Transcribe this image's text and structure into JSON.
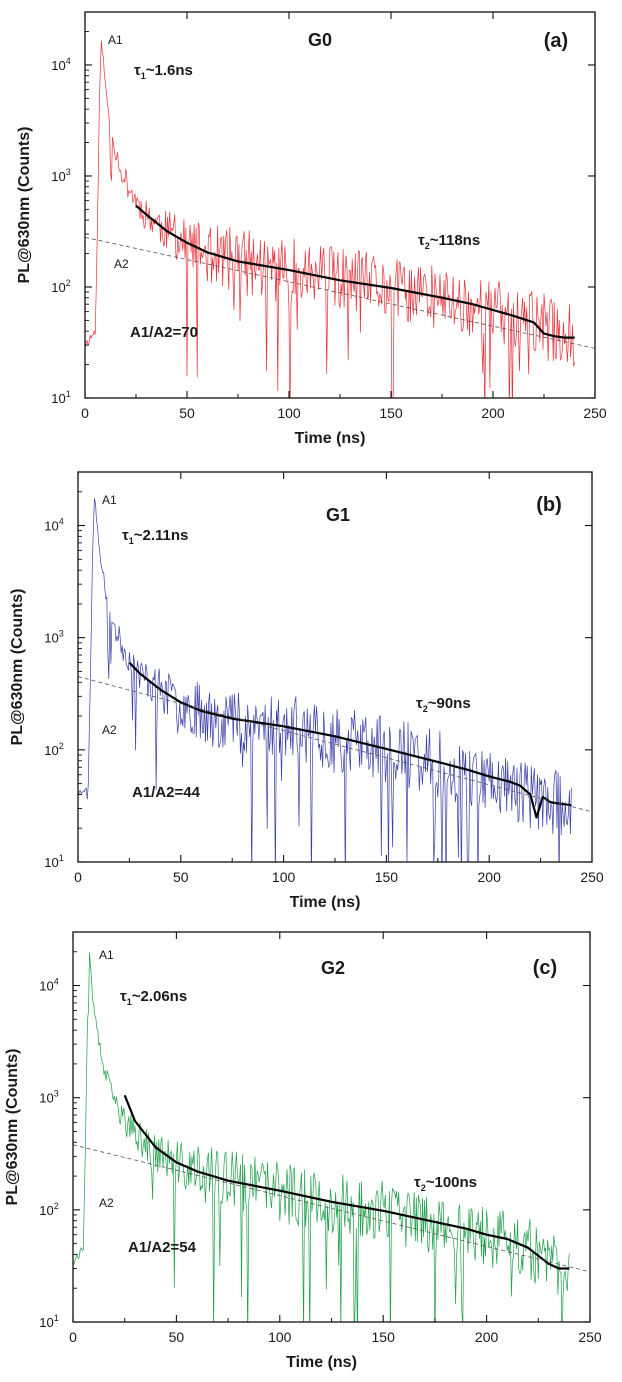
{
  "chart_data": [
    {
      "type": "line",
      "panel_label": "(a)",
      "title": "G0",
      "xlabel": "Time (ns)",
      "ylabel": "PL@630nm (Counts)",
      "xlim": [
        0,
        250
      ],
      "ylim": [
        10,
        30000
      ],
      "yscale": "log",
      "x_ticks": [
        0,
        50,
        100,
        150,
        200,
        250
      ],
      "y_ticks": [
        {
          "value": 10,
          "base": "10",
          "exp": "1"
        },
        {
          "value": 100,
          "base": "10",
          "exp": "2"
        },
        {
          "value": 1000,
          "base": "10",
          "exp": "3"
        },
        {
          "value": 10000,
          "base": "10",
          "exp": "4"
        }
      ],
      "series": [
        {
          "values_x": [
            0,
            5,
            6,
            7,
            8,
            9,
            10,
            12,
            15,
            18,
            22,
            26,
            30,
            40,
            50,
            60,
            75,
            100,
            125,
            150,
            175,
            200,
            220,
            230,
            240
          ],
          "values_y": [
            30,
            40,
            300,
            4000,
            18000,
            11000,
            6500,
            3200,
            1700,
            1100,
            750,
            560,
            450,
            320,
            240,
            200,
            170,
            140,
            115,
            95,
            78,
            60,
            48,
            40,
            35
          ],
          "color": "#e8323a",
          "noise": 0.3,
          "seed": 11
        },
        {
          "values_x": [
            25,
            30,
            40,
            50,
            60,
            75,
            100,
            125,
            150,
            175,
            190,
            200,
            210,
            220,
            225,
            230,
            235,
            240
          ],
          "values_y": [
            540,
            450,
            320,
            250,
            205,
            170,
            142,
            115,
            98,
            80,
            70,
            62,
            55,
            48,
            38,
            36,
            35,
            35
          ],
          "color": "#000000",
          "noise": 0,
          "seed": 0
        },
        {
          "values_x": [
            0,
            250
          ],
          "values_y": [
            280,
            28
          ],
          "color": "#555555",
          "noise": 0,
          "seed": 0
        }
      ],
      "annotations": {
        "a1": "A1",
        "a2": "A2",
        "tau1_sym": "τ",
        "tau1_sub": "1",
        "tau1_val": "~1.6ns",
        "tau2_sym": "τ",
        "tau2_sub": "2",
        "tau2_val": "~118ns",
        "ratio": "A1/A2=70"
      }
    },
    {
      "type": "line",
      "panel_label": "(b)",
      "title": "G1",
      "xlabel": "Time (ns)",
      "ylabel": "PL@630nm (Counts)",
      "xlim": [
        0,
        250
      ],
      "ylim": [
        10,
        30000
      ],
      "yscale": "log",
      "x_ticks": [
        0,
        50,
        100,
        150,
        200,
        250
      ],
      "y_ticks": [
        {
          "value": 10,
          "base": "10",
          "exp": "1"
        },
        {
          "value": 100,
          "base": "10",
          "exp": "2"
        },
        {
          "value": 1000,
          "base": "10",
          "exp": "3"
        },
        {
          "value": 10000,
          "base": "10",
          "exp": "4"
        }
      ],
      "series": [
        {
          "values_x": [
            0,
            5,
            6,
            7,
            8,
            9,
            10,
            12,
            15,
            18,
            22,
            26,
            30,
            40,
            50,
            60,
            75,
            100,
            125,
            150,
            175,
            200,
            220,
            230,
            240
          ],
          "values_y": [
            40,
            50,
            400,
            5000,
            18000,
            12000,
            7000,
            3600,
            1900,
            1200,
            800,
            600,
            480,
            340,
            260,
            220,
            190,
            160,
            130,
            100,
            75,
            55,
            40,
            34,
            32
          ],
          "color": "#3b40a8",
          "noise": 0.3,
          "seed": 23
        },
        {
          "values_x": [
            25,
            30,
            40,
            50,
            60,
            75,
            100,
            125,
            150,
            175,
            190,
            200,
            210,
            215,
            220,
            223,
            226,
            230,
            235,
            240
          ],
          "values_y": [
            600,
            480,
            345,
            265,
            222,
            190,
            162,
            132,
            102,
            78,
            66,
            58,
            52,
            48,
            40,
            25,
            38,
            34,
            33,
            32
          ],
          "color": "#000000",
          "noise": 0,
          "seed": 0
        },
        {
          "values_x": [
            0,
            250
          ],
          "values_y": [
            450,
            28
          ],
          "color": "#555555",
          "noise": 0,
          "seed": 0
        }
      ],
      "annotations": {
        "a1": "A1",
        "a2": "A2",
        "tau1_sym": "τ",
        "tau1_sub": "1",
        "tau1_val": "~2.11ns",
        "tau2_sym": "τ",
        "tau2_sub": "2",
        "tau2_val": "~90ns",
        "ratio": "A1/A2=44"
      }
    },
    {
      "type": "line",
      "panel_label": "(c)",
      "title": "G2",
      "xlabel": "Time (ns)",
      "ylabel": "PL@630nm (Counts)",
      "xlim": [
        0,
        250
      ],
      "ylim": [
        10,
        30000
      ],
      "yscale": "log",
      "x_ticks": [
        0,
        50,
        100,
        150,
        200,
        250
      ],
      "y_ticks": [
        {
          "value": 10,
          "base": "10",
          "exp": "1"
        },
        {
          "value": 100,
          "base": "10",
          "exp": "2"
        },
        {
          "value": 1000,
          "base": "10",
          "exp": "3"
        },
        {
          "value": 10000,
          "base": "10",
          "exp": "4"
        }
      ],
      "series": [
        {
          "values_x": [
            0,
            5,
            6,
            7,
            8,
            9,
            10,
            12,
            15,
            18,
            22,
            26,
            30,
            40,
            50,
            60,
            75,
            100,
            125,
            150,
            175,
            200,
            220,
            230,
            240
          ],
          "values_y": [
            35,
            45,
            350,
            4500,
            19000,
            12000,
            7000,
            3400,
            1800,
            1150,
            780,
            580,
            470,
            330,
            255,
            215,
            180,
            145,
            115,
            95,
            75,
            58,
            45,
            33,
            30
          ],
          "color": "#1fa04a",
          "noise": 0.28,
          "seed": 37
        },
        {
          "values_x": [
            25,
            30,
            40,
            50,
            60,
            75,
            100,
            125,
            150,
            175,
            190,
            200,
            210,
            220,
            230,
            235,
            240
          ],
          "values_y": [
            1050,
            620,
            360,
            265,
            220,
            182,
            148,
            118,
            98,
            78,
            68,
            60,
            55,
            46,
            33,
            30,
            30
          ],
          "color": "#000000",
          "noise": 0,
          "seed": 0
        },
        {
          "values_x": [
            0,
            250
          ],
          "values_y": [
            380,
            28
          ],
          "color": "#555555",
          "noise": 0,
          "seed": 0
        }
      ],
      "annotations": {
        "a1": "A1",
        "a2": "A2",
        "tau1_sym": "τ",
        "tau1_sub": "1",
        "tau1_val": "~2.06ns",
        "tau2_sym": "τ",
        "tau2_sub": "2",
        "tau2_val": "~100ns",
        "ratio": "A1/A2=54"
      }
    }
  ]
}
